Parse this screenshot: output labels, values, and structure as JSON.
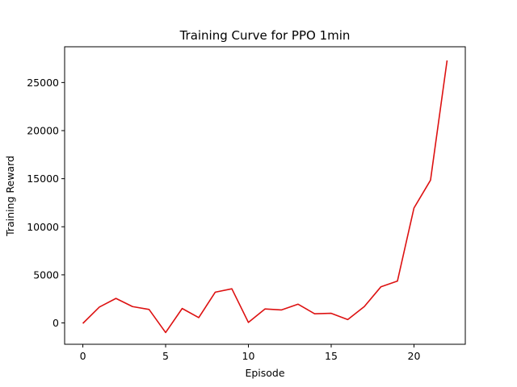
{
  "chart_data": {
    "type": "line",
    "title": "Training Curve for PPO 1min",
    "xlabel": "Episode",
    "ylabel": "Training Reward",
    "xlim": [
      -1.1,
      23.1
    ],
    "ylim": [
      -2220,
      28720
    ],
    "xticks": [
      0,
      5,
      10,
      15,
      20
    ],
    "yticks": [
      0,
      5000,
      10000,
      15000,
      20000,
      25000
    ],
    "grid": false,
    "line_color": "#dd1111",
    "series": [
      {
        "x": [
          0,
          1,
          2,
          3,
          4,
          5,
          6,
          7,
          8,
          9,
          10,
          11,
          12,
          13,
          14,
          15,
          16,
          17,
          18,
          19,
          20,
          21,
          22
        ],
        "values": [
          -50,
          1650,
          2550,
          1700,
          1400,
          -1000,
          1500,
          550,
          3200,
          3550,
          50,
          1450,
          1350,
          1950,
          950,
          1000,
          350,
          1700,
          3750,
          4350,
          11950,
          14850,
          27300
        ]
      }
    ]
  }
}
